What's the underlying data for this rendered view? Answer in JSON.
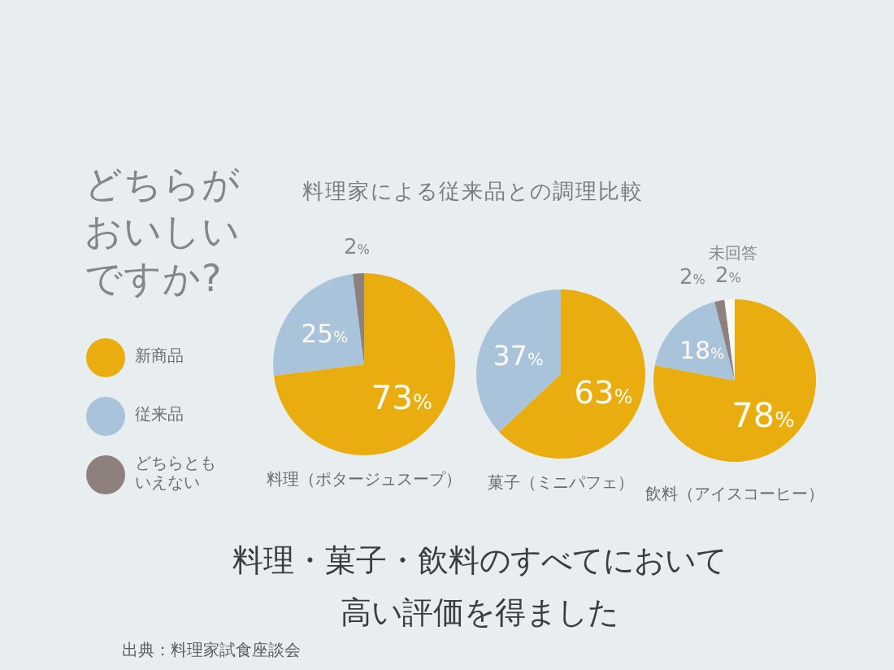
{
  "chart_data": [
    {
      "type": "pie",
      "title": "料理家による従来品との調理比較",
      "legend_title": "どちらがおいしいですか?",
      "legend": "left",
      "xlabel": "料理（ポタージュスープ）",
      "categories": [
        "新商品",
        "従来品",
        "どちらともいえない"
      ],
      "values": [
        73,
        25,
        2
      ],
      "colors": [
        "#e9ad0f",
        "#a9c3db",
        "#8e817d"
      ],
      "value_labels": [
        "73%",
        "25%",
        "2%"
      ]
    },
    {
      "type": "pie",
      "xlabel": "菓子（ミニパフェ）",
      "categories": [
        null,
        null
      ],
      "values": [
        63,
        37
      ],
      "colors": [
        "#e9ad0f",
        "#a9c3db"
      ],
      "value_labels": [
        "63%",
        "37%"
      ]
    },
    {
      "type": "pie",
      "xlabel": "飲料（アイスコーヒー）",
      "categories": [
        null,
        null,
        null,
        "未回答"
      ],
      "values": [
        78,
        18,
        2,
        2
      ],
      "colors": [
        "#e9ad0f",
        "#a9c3db",
        "#8e817d",
        "#f7f7f4"
      ],
      "value_labels": [
        "78%",
        "18%",
        "2%",
        "2%"
      ]
    },
    {
      "type": "other",
      "title": "料理・菓子・飲料のすべてにおいて高い評価を得ました",
      "annotations": [
        "出典：料理家試食座談会"
      ]
    }
  ]
}
